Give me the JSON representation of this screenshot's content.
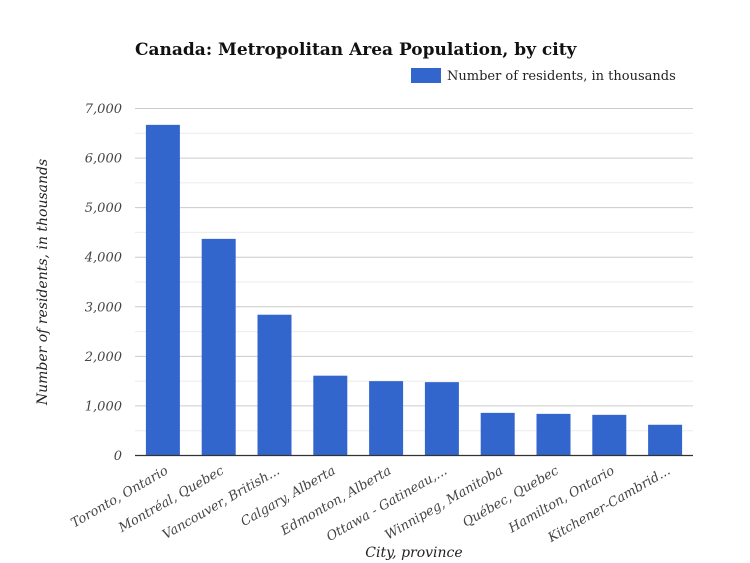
{
  "chart_data": {
    "type": "bar",
    "title": "Canada: Metropolitan Area Population, by city",
    "xlabel": "City, province",
    "ylabel": "Number of residents, in thousands",
    "ylim": [
      0,
      7000
    ],
    "yticks": [
      "0",
      "1,000",
      "2,000",
      "3,000",
      "4,000",
      "5,000",
      "6,000",
      "7,000"
    ],
    "grid": true,
    "legend_position": "top-right",
    "categories": [
      "Toronto, Ontario",
      "Montréal, Quebec",
      "Vancouver, British...",
      "Calgary, Alberta",
      "Edmonton, Alberta",
      "Ottawa - Gatineau,...",
      "Winnipeg, Manitoba",
      "Québec, Quebec",
      "Hamilton, Ontario",
      "Kitchener-Cambrid..."
    ],
    "series": [
      {
        "name": "Number of residents, in thousands",
        "color": "#3366cc",
        "values": [
          6660,
          4360,
          2830,
          1600,
          1490,
          1470,
          850,
          830,
          810,
          610
        ]
      }
    ]
  }
}
